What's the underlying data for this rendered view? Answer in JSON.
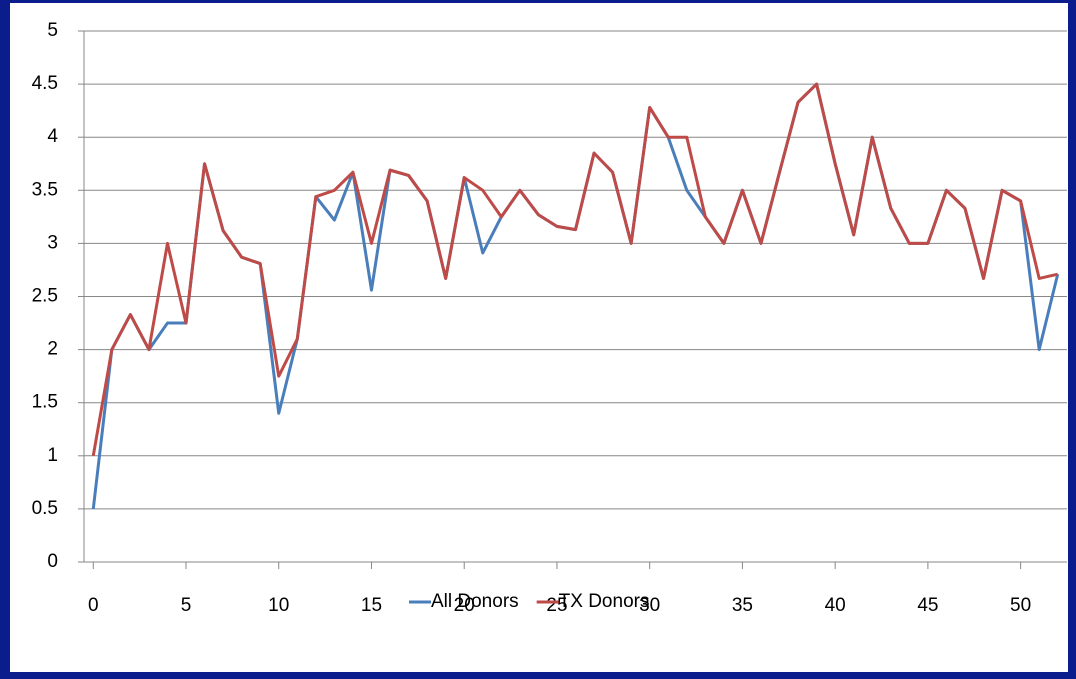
{
  "chart_data": {
    "type": "line",
    "x": [
      0,
      1,
      2,
      3,
      4,
      5,
      6,
      7,
      8,
      9,
      10,
      11,
      12,
      13,
      14,
      15,
      16,
      17,
      18,
      19,
      20,
      21,
      22,
      23,
      24,
      25,
      26,
      27,
      28,
      29,
      30,
      31,
      32,
      33,
      34,
      35,
      36,
      37,
      38,
      39,
      40,
      41,
      42,
      43,
      44,
      45,
      46,
      47,
      48,
      49,
      50,
      51,
      52
    ],
    "series": [
      {
        "name": "All Donors",
        "color": "#4a7ebb",
        "values": [
          0.5,
          2,
          2.33,
          2,
          2.25,
          2.25,
          3.75,
          3.12,
          2.87,
          2.81,
          1.4,
          2.1,
          3.44,
          3.22,
          3.67,
          2.56,
          3.69,
          3.64,
          3.4,
          2.67,
          3.62,
          2.91,
          3.25,
          3.5,
          3.27,
          3.16,
          3.13,
          3.85,
          3.67,
          3,
          4.28,
          4,
          3.5,
          3.25,
          3,
          3.5,
          3,
          3.67,
          4.33,
          4.5,
          3.75,
          3.08,
          4,
          3.33,
          3,
          3,
          3.5,
          3.33,
          2.67,
          3.5,
          3.4,
          2,
          2.71
        ]
      },
      {
        "name": "TX Donors",
        "color": "#be4b48",
        "values": [
          1,
          2,
          2.33,
          2,
          3,
          2.25,
          3.75,
          3.12,
          2.87,
          2.81,
          1.75,
          2.1,
          3.44,
          3.5,
          3.67,
          3,
          3.69,
          3.64,
          3.4,
          2.67,
          3.62,
          3.5,
          3.25,
          3.5,
          3.27,
          3.16,
          3.13,
          3.85,
          3.67,
          3,
          4.28,
          4,
          4,
          3.25,
          3,
          3.5,
          3,
          3.67,
          4.33,
          4.5,
          3.75,
          3.08,
          4,
          3.33,
          3,
          3,
          3.5,
          3.33,
          2.67,
          3.5,
          3.4,
          2.67,
          2.71
        ]
      }
    ],
    "xlim": [
      -0.5,
      52.5
    ],
    "xticks": [
      0,
      5,
      10,
      15,
      20,
      25,
      30,
      35,
      40,
      45,
      50
    ],
    "ylim": [
      0,
      5
    ],
    "yticks": [
      0,
      0.5,
      1,
      1.5,
      2,
      2.5,
      3,
      3.5,
      4,
      4.5,
      5
    ],
    "grid": true,
    "legend": "bottom"
  }
}
